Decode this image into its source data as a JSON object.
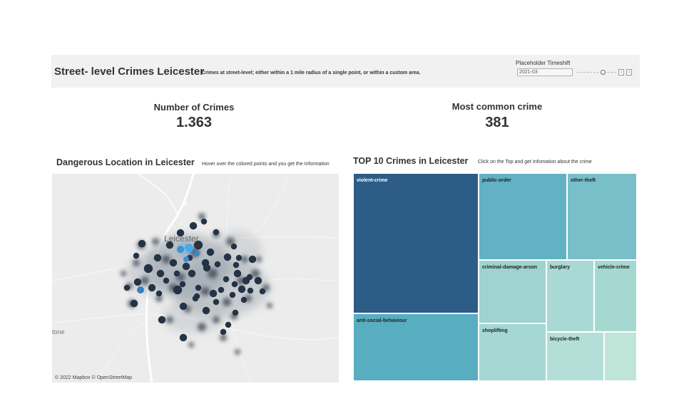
{
  "header": {
    "title": "Street- level Crimes Leicester",
    "subtitle": "Crimes at street-level; either within a 1 mile radius of a single point, or within a custom area.",
    "timeshift_label": "Placeholder Timeshift",
    "timeshift_value": "2021-03",
    "prev_label": "‹",
    "next_label": "›"
  },
  "kpis": {
    "crimes_label": "Number of Crimes",
    "crimes_value": "1.363",
    "common_label": "Most common crime",
    "common_value": "381"
  },
  "map": {
    "title": "Dangerous Location in Leicester",
    "note": "Hover over the colored points and you get the Information",
    "city_label": "Leicester",
    "edge_label": "tone",
    "attribution": "© 2022 Mapbox © OpenStreetMap"
  },
  "treemap": {
    "title": "TOP 10 Crimes in Leicester",
    "note": "Click on the Top and get Infomation about the crime",
    "tiles": [
      {
        "label": "violent-crime",
        "color": "#2d5c87"
      },
      {
        "label": "anti-social-behaviour",
        "color": "#58aec0"
      },
      {
        "label": "public-order",
        "color": "#62b2c4"
      },
      {
        "label": "other-theft",
        "color": "#78bfc9"
      },
      {
        "label": "criminal-damage-arson",
        "color": "#9ed3d1"
      },
      {
        "label": "burglary",
        "color": "#a9d9d4"
      },
      {
        "label": "vehicle-crime",
        "color": "#a6d8d2"
      },
      {
        "label": "shoplifting",
        "color": "#a6d8d3"
      },
      {
        "label": "bicycle-theft",
        "color": "#b4dfd8"
      },
      {
        "label": "",
        "color": "#bfe5d8"
      }
    ]
  }
}
